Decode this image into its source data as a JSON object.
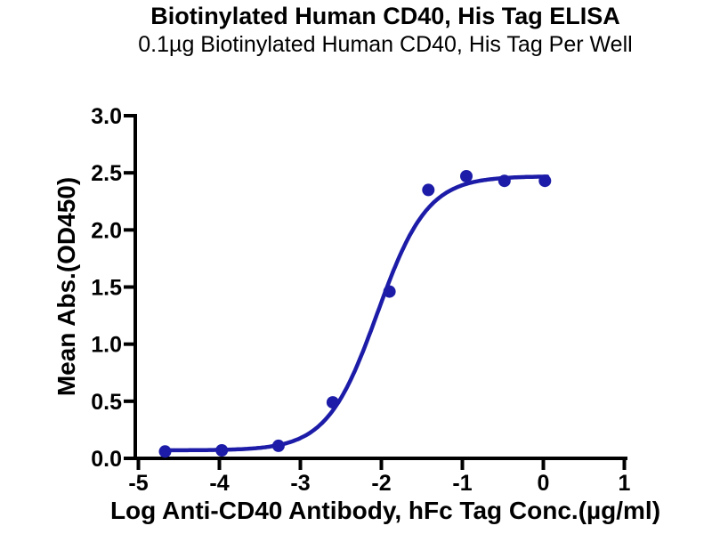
{
  "chart_data": {
    "type": "scatter",
    "title": "Biotinylated Human CD40, His Tag ELISA",
    "subtitle": "0.1µg Biotinylated Human CD40, His Tag Per Well",
    "xlabel": "Log Anti-CD40 Antibody, hFc Tag Conc.(µg/ml)",
    "ylabel": "Mean Abs.(OD450)",
    "xlim": [
      -5.04,
      1.16
    ],
    "ylim": [
      0,
      3.0
    ],
    "xticks": [
      -5,
      -4,
      -3,
      -2,
      -1,
      0,
      1
    ],
    "yticks": [
      0.0,
      0.5,
      1.0,
      1.5,
      2.0,
      2.5,
      3.0
    ],
    "grid": false,
    "legend": "none",
    "colors": {
      "series": "#1c1ca8",
      "axis": "#000000",
      "text": "#000000",
      "background": "#ffffff"
    },
    "series": [
      {
        "name": "Anti-CD40 Antibody, hFc Tag",
        "marker": "circle",
        "points": [
          {
            "x": -4.67,
            "y": 0.06
          },
          {
            "x": -3.97,
            "y": 0.07
          },
          {
            "x": -3.27,
            "y": 0.11
          },
          {
            "x": -2.6,
            "y": 0.49
          },
          {
            "x": -1.9,
            "y": 1.46
          },
          {
            "x": -1.42,
            "y": 2.35
          },
          {
            "x": -0.95,
            "y": 2.47
          },
          {
            "x": -0.48,
            "y": 2.43
          },
          {
            "x": 0.02,
            "y": 2.43
          }
        ],
        "fit_curve": {
          "model": "4PL",
          "bottom": 0.07,
          "top": 2.47,
          "logEC50": -2.05,
          "hillslope": 1.4,
          "x_start": -4.67,
          "x_end": 0.05
        }
      }
    ]
  }
}
